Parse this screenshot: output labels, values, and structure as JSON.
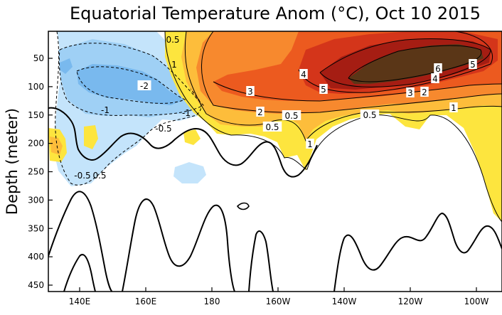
{
  "chart_data": {
    "type": "heatmap",
    "title": "Equatorial Temperature Anom (°C), Oct 10 2015",
    "xlabel": "",
    "ylabel": "Depth (meter)",
    "x_ticks": [
      "140E",
      "160E",
      "180",
      "160W",
      "140W",
      "120W",
      "100W"
    ],
    "y_ticks": [
      "50",
      "100",
      "150",
      "200",
      "250",
      "300",
      "350",
      "400",
      "450"
    ],
    "ylim": [
      460,
      15
    ],
    "contour_labels": [
      "0.5",
      "1",
      "-2",
      "4",
      "3",
      "5",
      "6",
      "5",
      "4",
      "3",
      "2",
      "-1",
      "-1",
      "2",
      "0.5",
      "0.5",
      "1",
      "0.5",
      "-0.5",
      "1",
      "-0.5",
      "0.5"
    ],
    "colors": {
      "neg_2": "#79b9ee",
      "neg_1": "#9fd0f5",
      "neg_05": "#c4e4fb",
      "pos_05": "#fde53e",
      "pos_1": "#fdbd3b",
      "pos_2": "#f7892e",
      "pos_3": "#ec5a1f",
      "pos_4": "#d4351a",
      "pos_5": "#a51d13",
      "pos_6": "#5a3617"
    }
  }
}
